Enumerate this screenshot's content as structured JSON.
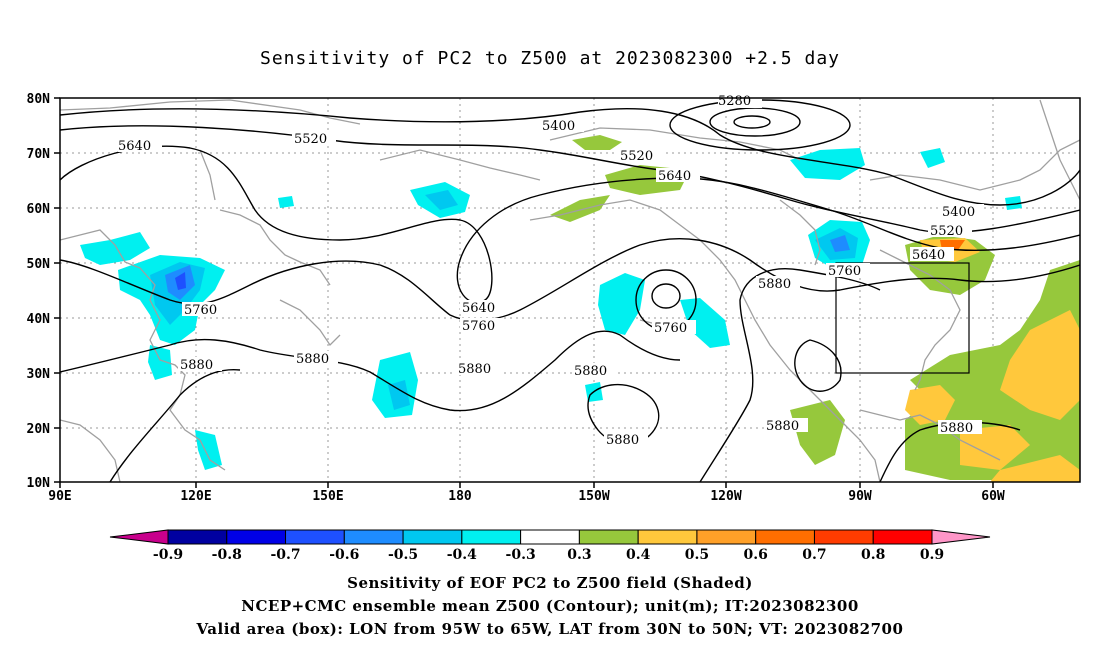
{
  "title": "Sensitivity of PC2 to Z500 at 2023082300 +2.5 day",
  "axes": {
    "lat_labels": [
      "80N",
      "70N",
      "60N",
      "50N",
      "40N",
      "30N",
      "20N",
      "10N"
    ],
    "lon_labels": [
      "90E",
      "120E",
      "150E",
      "180",
      "150W",
      "120W",
      "90W",
      "60W"
    ]
  },
  "contour_labels": [
    "5280",
    "5400",
    "5520",
    "5640",
    "5760",
    "5880"
  ],
  "colorbar": {
    "labels": [
      "-0.9",
      "-0.8",
      "-0.7",
      "-0.6",
      "-0.5",
      "-0.4",
      "-0.3",
      "0.3",
      "0.4",
      "0.5",
      "0.6",
      "0.7",
      "0.8",
      "0.9"
    ],
    "colors": [
      "#c8008c",
      "#0000a0",
      "#0000e6",
      "#1e50ff",
      "#1e8cff",
      "#00c8f0",
      "#00f0f0",
      "#ffffff",
      "#96c83c",
      "#ffc83c",
      "#ffa028",
      "#ff6e00",
      "#ff3c00",
      "#ff0000",
      "#ff96c8"
    ]
  },
  "captions": [
    "Sensitivity of EOF PC2 to Z500 field (Shaded)",
    "NCEP+CMC ensemble mean Z500 (Contour); unit(m); IT:2023082300",
    "Valid area (box): LON from 95W to 65W, LAT from 30N to 50N; VT: 2023082700"
  ]
}
